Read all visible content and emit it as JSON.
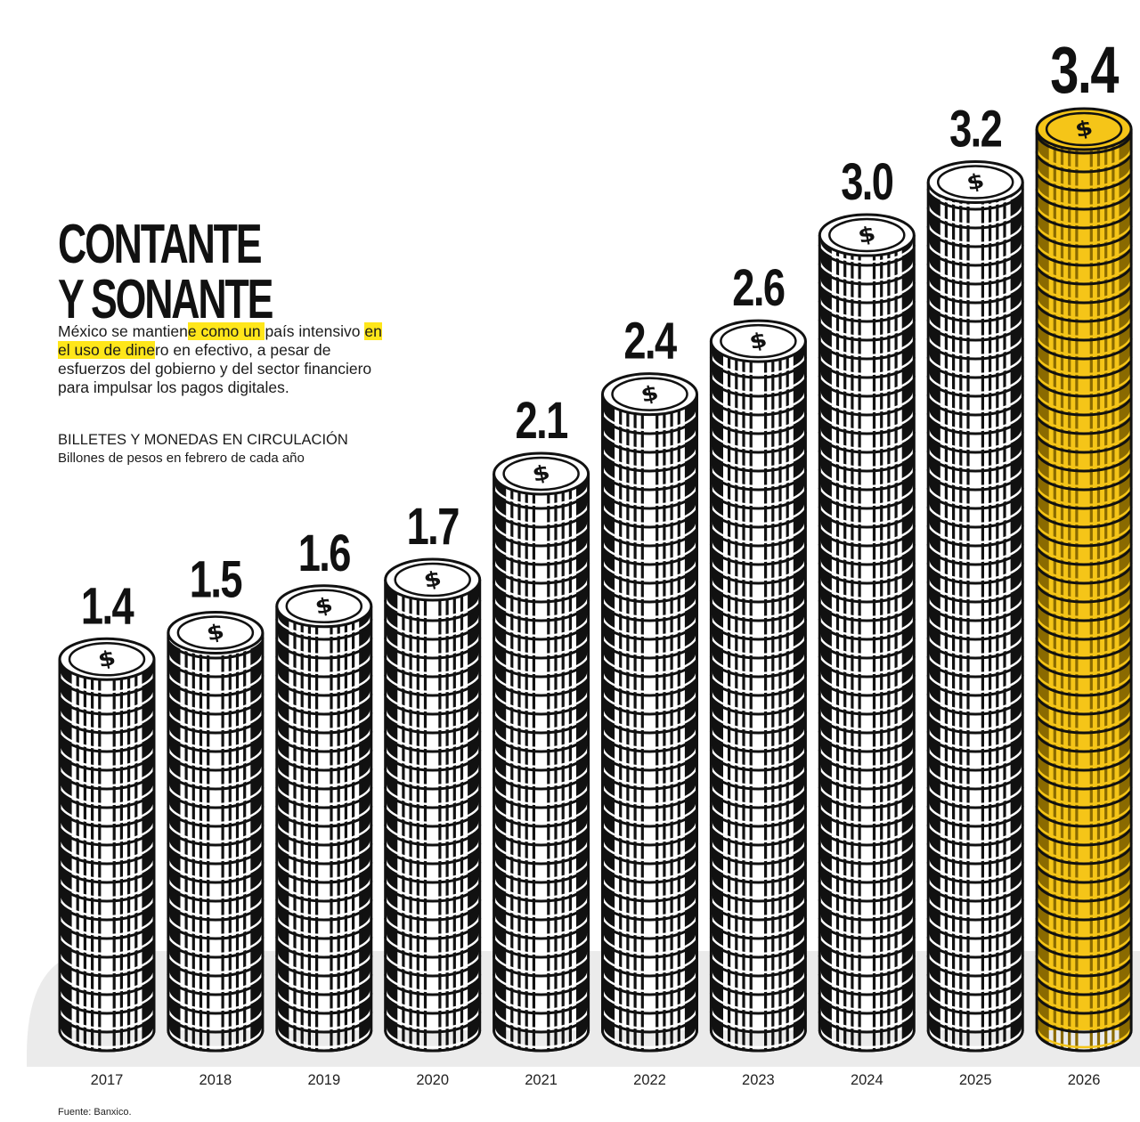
{
  "header": {
    "title_line1": "CONTANTE",
    "title_line2": "Y SONANTE",
    "intro_pre": "México se mantien",
    "intro_hl1": "e como un ",
    "intro_mid1": "país intensivo ",
    "intro_hl2": "en el uso de dine",
    "intro_rest": "ro en efectivo, a pesar de esfuerzos del gobierno y del sector financiero para impulsar los pagos digitales.",
    "subtitle": "BILLETES Y MONEDAS EN CIRCULACIÓN",
    "units": "Billones de pesos en febrero de cada año"
  },
  "footer": {
    "source": "Fuente: Banxico."
  },
  "colors": {
    "highlight": "#ffe61a",
    "coin": "#ffffff",
    "coin_highlight": "#f5c518",
    "outline": "#111111",
    "floor_shadow": "#ebebeb"
  },
  "chart_data": {
    "type": "bar",
    "title": "",
    "categories": [
      "2017",
      "2018",
      "2019",
      "2020",
      "2021",
      "2022",
      "2023",
      "2024",
      "2025",
      "2026"
    ],
    "values": [
      1.4,
      1.5,
      1.6,
      1.7,
      2.1,
      2.4,
      2.6,
      3.0,
      3.2,
      3.4
    ],
    "value_labels": [
      "1.4",
      "1.5",
      "1.6",
      "1.7",
      "2.1",
      "2.4",
      "2.6",
      "3.0",
      "3.2",
      "3.4"
    ],
    "xlabel": "",
    "ylabel": "",
    "ylim": [
      0,
      3.4
    ],
    "highlight_category": "2026",
    "grid": false,
    "legend": "none",
    "icon": "dollar-sign-icon"
  }
}
